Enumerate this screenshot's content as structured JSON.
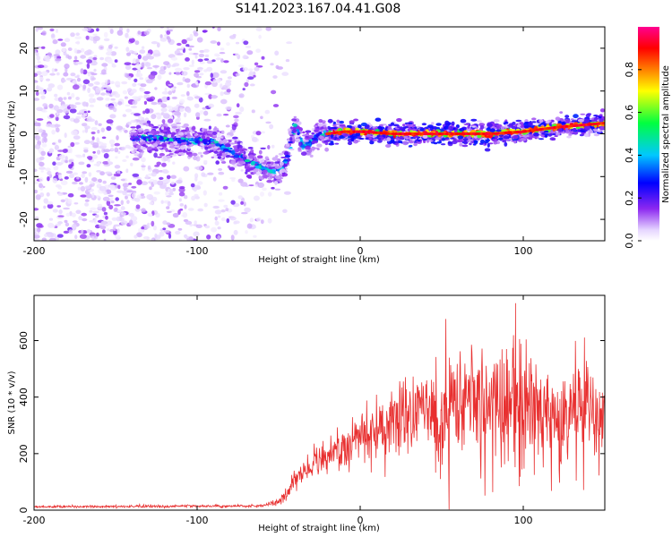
{
  "title": "S141.2023.167.04.41.G08",
  "chart_data": [
    {
      "type": "heatmap",
      "xlabel": "Height of straight line (km)",
      "ylabel": "Frequency (Hz)",
      "xlim": [
        -200,
        150
      ],
      "ylim": [
        -25,
        25
      ],
      "x_ticks": [
        -200,
        -100,
        0,
        100
      ],
      "y_ticks": [
        -20,
        -10,
        0,
        10,
        20
      ],
      "colorbar": {
        "label": "Normalized spectral amplitude",
        "range": [
          0,
          1
        ],
        "ticks": [
          "0.0",
          "0.2",
          "0.4",
          "0.6",
          "0.8"
        ]
      },
      "ridge": {
        "x": [
          -130,
          -110,
          -90,
          -80,
          -70,
          -60,
          -50,
          -45,
          -40,
          -35,
          -30,
          -25,
          -20,
          -10,
          0,
          20,
          40,
          60,
          80,
          100,
          120,
          150
        ],
        "frequency_hz": [
          -1,
          -1.5,
          -2,
          -4,
          -6,
          -8,
          -9,
          -6,
          2,
          -3,
          -2,
          0,
          0,
          0.5,
          0.5,
          0,
          0,
          0,
          0,
          0.5,
          1.5,
          2.5
        ]
      }
    },
    {
      "type": "line",
      "xlabel": "Height of straight line (km)",
      "ylabel": "SNR (10 * v/v)",
      "xlim": [
        -200,
        150
      ],
      "ylim": [
        0,
        760
      ],
      "x_ticks": [
        -200,
        -100,
        0,
        100
      ],
      "y_ticks": [
        0,
        200,
        400,
        600
      ],
      "color": "#e83030",
      "envelope": {
        "x": [
          -200,
          -60,
          -50,
          -45,
          -40,
          -30,
          -20,
          -10,
          0,
          10,
          20,
          30,
          35,
          40,
          45,
          50,
          60,
          70,
          80,
          90,
          95,
          100,
          110,
          120,
          125,
          130,
          140,
          150
        ],
        "y": [
          12,
          15,
          30,
          60,
          110,
          160,
          190,
          230,
          260,
          280,
          320,
          340,
          350,
          360,
          340,
          350,
          360,
          370,
          350,
          380,
          400,
          380,
          330,
          290,
          300,
          330,
          330,
          330
        ]
      }
    }
  ]
}
